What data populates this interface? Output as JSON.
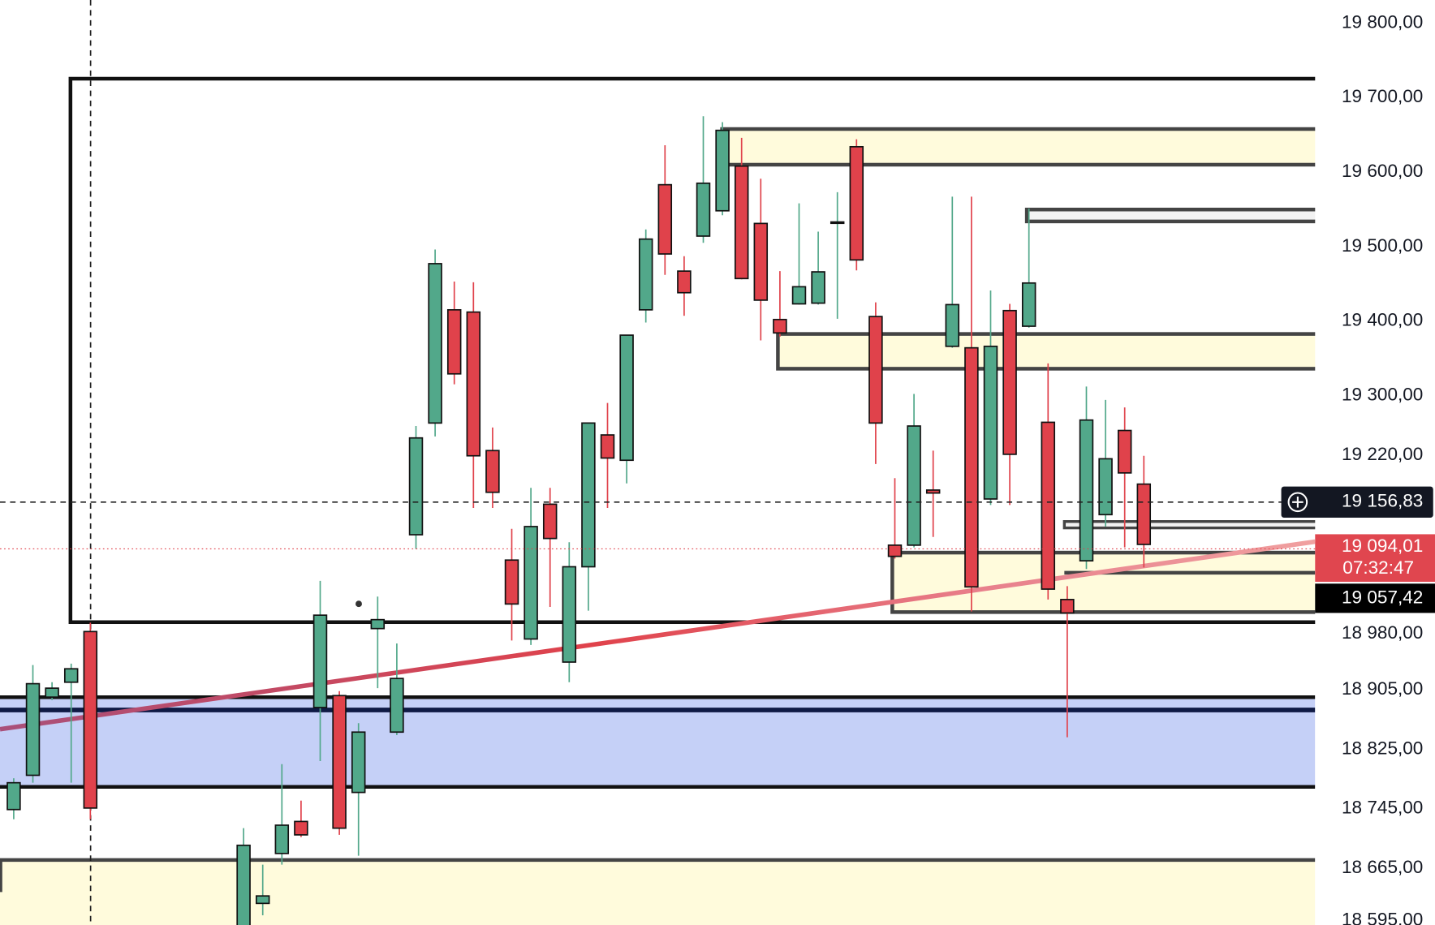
{
  "chart_data": {
    "type": "candlestick",
    "up_color": "#52a88a",
    "down_color": "#e0424b",
    "ylim": [
      18589,
      19831
    ],
    "yticks": [
      {
        "value": 19800,
        "label": "19 800,00"
      },
      {
        "value": 19700,
        "label": "19 700,00"
      },
      {
        "value": 19600,
        "label": "19 600,00"
      },
      {
        "value": 19500,
        "label": "19 500,00"
      },
      {
        "value": 19400,
        "label": "19 400,00"
      },
      {
        "value": 19300,
        "label": "19 300,00"
      },
      {
        "value": 19220,
        "label": "19 220,00"
      },
      {
        "value": 18980,
        "label": "18 980,00"
      },
      {
        "value": 18905,
        "label": "18 905,00"
      },
      {
        "value": 18825,
        "label": "18 825,00"
      },
      {
        "value": 18745,
        "label": "18 745,00"
      },
      {
        "value": 18665,
        "label": "18 665,00"
      },
      {
        "value": 18595,
        "label": "18 595,00"
      }
    ],
    "categories": [
      null,
      null,
      null,
      null,
      null,
      null,
      null,
      null,
      null,
      null,
      null,
      null,
      null,
      null,
      null,
      null,
      null,
      null,
      null,
      null,
      null,
      null,
      null,
      null,
      null,
      null,
      null,
      null,
      null,
      null,
      null,
      null,
      null,
      null,
      null,
      null,
      null,
      null,
      null,
      null,
      null,
      null,
      null,
      null,
      null,
      null,
      null,
      null,
      null,
      null,
      null,
      null,
      null,
      null,
      null,
      null,
      null,
      null,
      null,
      null
    ],
    "open": [
      18744,
      18790,
      18895,
      18915,
      18983,
      null,
      null,
      null,
      null,
      null,
      null,
      null,
      18565,
      18618,
      18685,
      18728,
      18881,
      18897,
      18767,
      18987,
      18848,
      19113,
      19263,
      19415,
      19412,
      19226,
      19079,
      18973,
      19154,
      18942,
      19070,
      19247,
      19213,
      19415,
      19583,
      19467,
      19514,
      19548,
      19608,
      19531,
      19402,
      19423,
      19424,
      19532,
      19634,
      19406,
      19099,
      19099,
      19173,
      19366,
      19364,
      19161,
      19414,
      19393,
      19264,
      19026,
      19078,
      19140,
      19253,
      19181
    ],
    "high": [
      18786,
      18938,
      18915,
      18940,
      18995,
      null,
      null,
      null,
      null,
      null,
      null,
      null,
      18719,
      18670,
      18805,
      18756,
      19051,
      18903,
      18860,
      19030,
      18967,
      19259,
      19496,
      19453,
      19452,
      19257,
      19121,
      19176,
      19176,
      19103,
      19263,
      19290,
      19381,
      19523,
      19636,
      19487,
      19675,
      19667,
      19646,
      19591,
      19467,
      19558,
      19520,
      19573,
      19644,
      19425,
      19189,
      19302,
      19226,
      19567,
      19567,
      19441,
      19423,
      19551,
      19343,
      19044,
      19312,
      19294,
      19284,
      19219
    ],
    "low": [
      18731,
      18780,
      18891,
      18780,
      18731,
      null,
      null,
      null,
      null,
      null,
      null,
      null,
      18550,
      18602,
      18670,
      18707,
      18809,
      18710,
      18682,
      18907,
      18844,
      19094,
      19245,
      19315,
      19149,
      19149,
      18971,
      18965,
      19016,
      18915,
      19011,
      19149,
      19182,
      19398,
      19462,
      19407,
      19505,
      19542,
      19456,
      19374,
      19379,
      19422,
      19422,
      19403,
      19468,
      19208,
      19081,
      19096,
      19110,
      19364,
      19010,
      19153,
      19153,
      19391,
      19026,
      18841,
      19067,
      19124,
      19096,
      19069
    ],
    "close": [
      18780,
      18913,
      18907,
      18933,
      18746,
      null,
      null,
      null,
      null,
      null,
      null,
      null,
      18696,
      18628,
      18723,
      18710,
      19005,
      18719,
      18848,
      18999,
      18920,
      19243,
      19477,
      19329,
      19219,
      19170,
      19020,
      19124,
      19108,
      19070,
      19263,
      19216,
      19381,
      19510,
      19490,
      19438,
      19585,
      19656,
      19457,
      19428,
      19384,
      19446,
      19466,
      19533,
      19482,
      19263,
      19084,
      19259,
      19169,
      19422,
      19043,
      19366,
      19221,
      19451,
      19040,
      19008,
      19267,
      19215,
      19196,
      19100
    ],
    "crosshair_price": {
      "value": 19156.83,
      "label": "19 156,83"
    },
    "last_price": {
      "value": 19094.01,
      "label": "19 094,01"
    },
    "countdown": "07:32:47",
    "marked_price": {
      "value": 19057.42,
      "label": "19 057,42"
    }
  }
}
